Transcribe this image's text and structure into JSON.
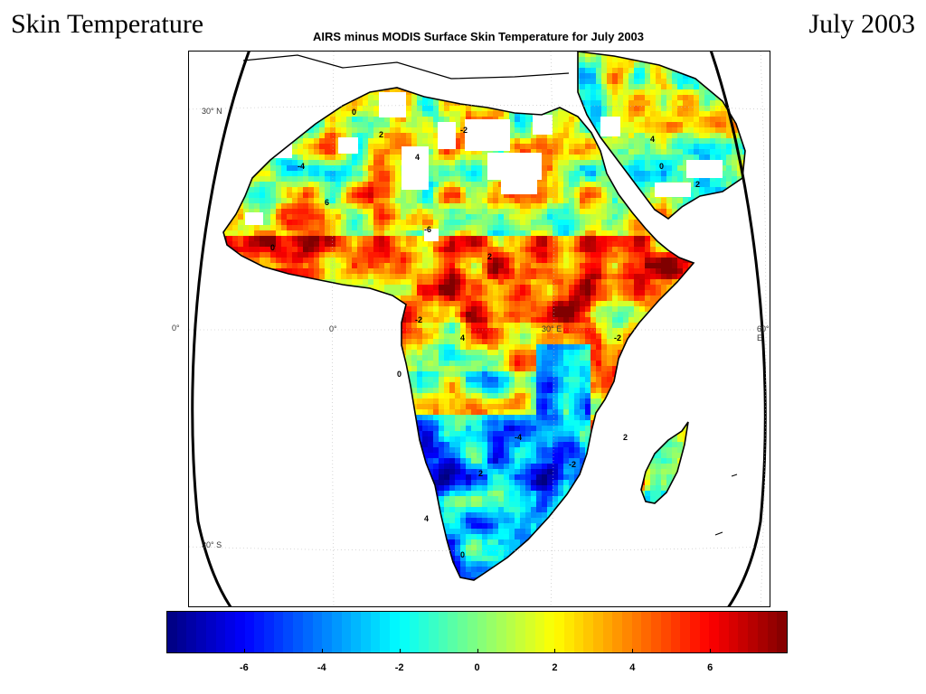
{
  "slide": {
    "title": "Skin Temperature",
    "date": "July 2003"
  },
  "figure": {
    "title": "AIRS minus MODIS Surface Skin Temperature for July 2003"
  },
  "map_labels": {
    "lat_30n": "30° N",
    "lat_0": "0°",
    "lat_30s": "30° S",
    "lon_0": "0°",
    "lon_30e": "30° E",
    "lon_60e": "60° E"
  },
  "colorbar": {
    "ticks": [
      "-6",
      "-4",
      "-2",
      "0",
      "2",
      "4",
      "6"
    ],
    "tick_values": [
      -6,
      -4,
      -2,
      0,
      2,
      4,
      6
    ],
    "range": [
      -8,
      8
    ],
    "colormap": "jet"
  },
  "contour_labels": [
    "0",
    "2",
    "4",
    "-2",
    "-4",
    "6",
    "-6",
    "0",
    "2",
    "-2",
    "4",
    "0",
    "-4",
    "2",
    "4",
    "0",
    "-2",
    "2"
  ],
  "colors": {
    "land_default": "#7fffcf",
    "outline": "#000000",
    "missing": "#ffffff"
  }
}
